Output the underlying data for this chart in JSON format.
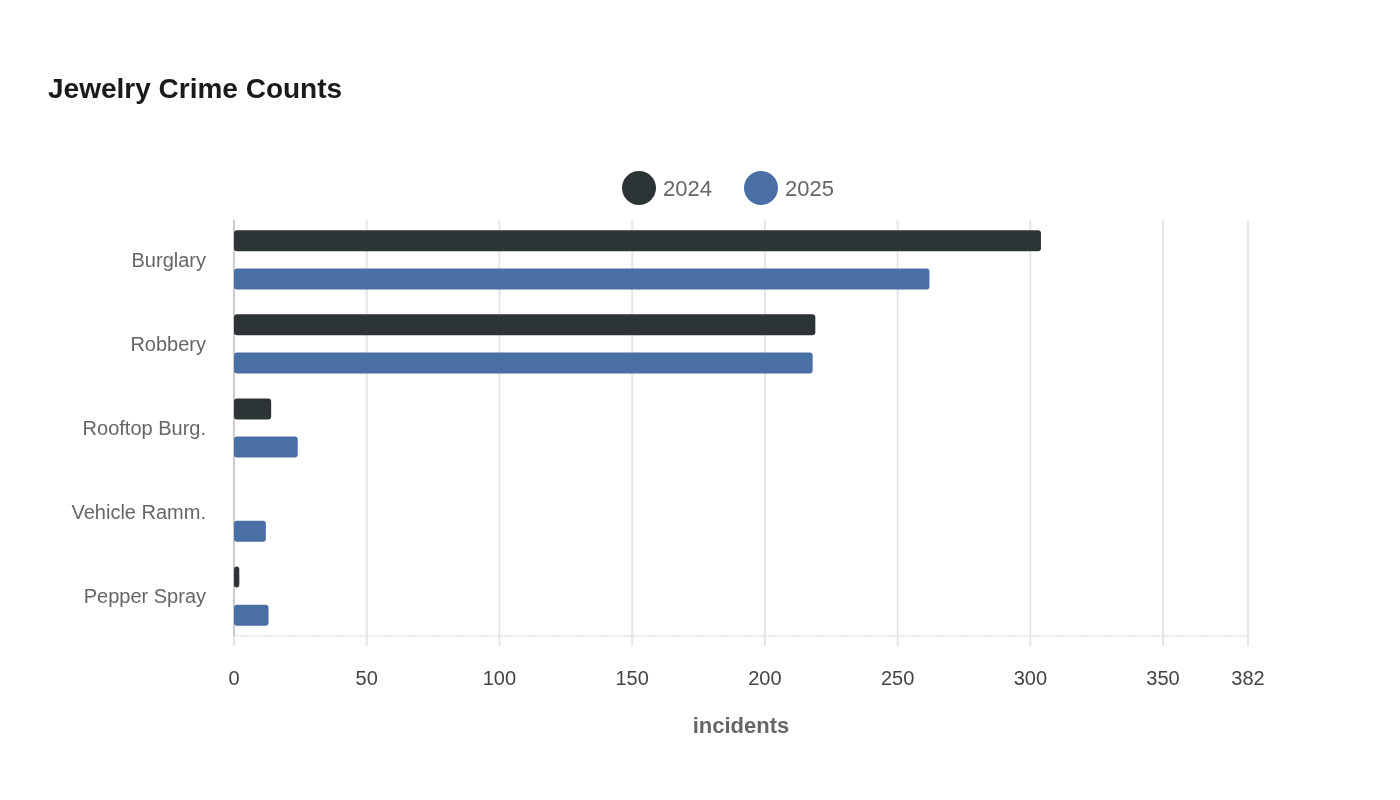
{
  "chart_data": {
    "type": "bar",
    "orientation": "horizontal",
    "title": "Jewelry Crime Counts",
    "xlabel": "incidents",
    "categories": [
      "Burglary",
      "Robbery",
      "Rooftop Burg.",
      "Vehicle Ramm.",
      "Pepper Spray"
    ],
    "series": [
      {
        "name": "2024",
        "color": "#2d3436",
        "values": [
          304,
          219,
          14,
          0,
          2
        ]
      },
      {
        "name": "2025",
        "color": "#4a6fa5",
        "values": [
          262,
          218,
          24,
          12,
          13
        ]
      }
    ],
    "xlim": [
      0,
      382
    ],
    "xticks": [
      0,
      50,
      100,
      150,
      200,
      250,
      300,
      350,
      382
    ],
    "grid": "x",
    "legend": "top"
  }
}
